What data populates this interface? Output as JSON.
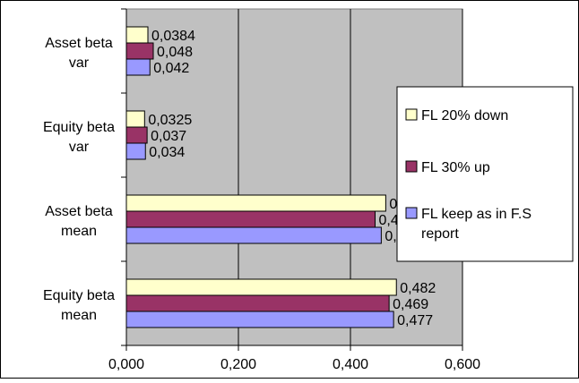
{
  "chart_data": {
    "type": "bar",
    "orientation": "horizontal",
    "categories": [
      [
        "Equity beta",
        "mean"
      ],
      [
        "Asset beta",
        "mean"
      ],
      [
        "Equity beta",
        "var"
      ],
      [
        "Asset beta",
        "var"
      ]
    ],
    "series": [
      {
        "name": "FL keep as in F.S report",
        "name_lines": [
          "FL keep as in F.S",
          "report"
        ],
        "color": "#9999ff",
        "values": [
          0.477,
          0.455,
          0.034,
          0.042
        ],
        "labels": [
          "0,477",
          "0,455",
          "0,034",
          "0,042"
        ]
      },
      {
        "name": "FL 30% up",
        "name_lines": [
          "FL 30% up"
        ],
        "color": "#993366",
        "values": [
          0.469,
          0.444,
          0.037,
          0.048
        ],
        "labels": [
          "0,469",
          "0,444",
          "0,037",
          "0,048"
        ]
      },
      {
        "name": "FL 20% down",
        "name_lines": [
          "FL 20% down"
        ],
        "color": "#ffffcc",
        "values": [
          0.482,
          0.463,
          0.0325,
          0.0384
        ],
        "labels": [
          "0,482",
          "0,463",
          "0,0325",
          "0,0384"
        ]
      }
    ],
    "x_ticks": [
      "0,000",
      "0,200",
      "0,400",
      "0,600"
    ],
    "xlim": [
      0,
      0.6
    ],
    "grid": true,
    "plot_background": "#c0c0c0",
    "legend_position": "right",
    "legend_order": [
      "FL 20% down",
      "FL 30% up",
      "FL keep as in F.S report"
    ]
  }
}
